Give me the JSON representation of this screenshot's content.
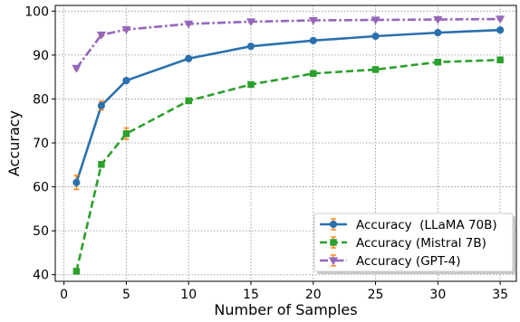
{
  "chart_data": {
    "type": "line",
    "xlabel": "Number of Samples",
    "ylabel": "Accuracy",
    "xlim": [
      -0.7,
      36.3
    ],
    "ylim": [
      38.5,
      101.3
    ],
    "xticks": [
      0,
      5,
      10,
      15,
      20,
      25,
      30,
      35
    ],
    "yticks": [
      40,
      50,
      60,
      70,
      80,
      90,
      100
    ],
    "grid": true,
    "legend_position": "bottom-right",
    "x": [
      1,
      3,
      5,
      10,
      15,
      20,
      25,
      30,
      35
    ],
    "series": [
      {
        "name": "Accuracy  (LLaMA 70B)",
        "values": [
          61.0,
          78.5,
          84.2,
          89.2,
          92.0,
          93.3,
          94.3,
          95.1,
          95.7
        ],
        "errors": [
          1.6,
          1.0,
          0.5,
          0.3,
          0.3,
          0.2,
          0.2,
          0.2,
          0.2
        ],
        "color": "#2b70ad",
        "line_style": "solid",
        "marker": "circle"
      },
      {
        "name": "Accuracy (Mistral 7B)",
        "values": [
          40.8,
          65.1,
          72.1,
          79.6,
          83.3,
          85.8,
          86.7,
          88.4,
          88.9
        ],
        "errors": [
          0.4,
          0.6,
          1.3,
          0.5,
          0.4,
          0.4,
          0.3,
          0.4,
          0.3
        ],
        "color": "#2ca02c",
        "line_style": "dashed",
        "marker": "square"
      },
      {
        "name": "Accuracy (GPT-4)",
        "values": [
          87.0,
          94.6,
          95.8,
          97.1,
          97.6,
          97.9,
          98.0,
          98.1,
          98.2
        ],
        "errors": [
          0.3,
          0.3,
          0.2,
          0.2,
          0.2,
          0.1,
          0.1,
          0.1,
          0.1
        ],
        "color": "#9467bd",
        "line_style": "dashdot",
        "marker": "triangle-down"
      }
    ],
    "errorbar_color": "#ff7f0e"
  }
}
